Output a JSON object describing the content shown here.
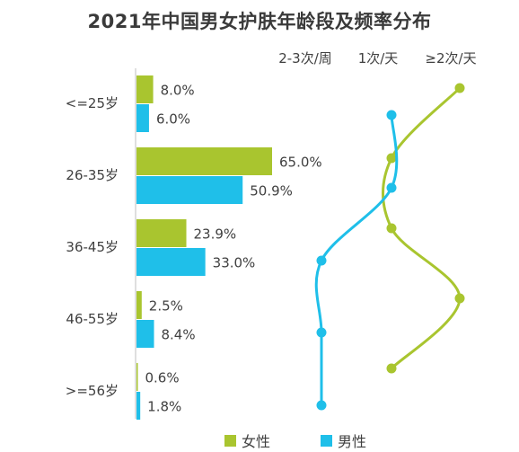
{
  "chart_data": [
    {
      "type": "bar",
      "orientation": "horizontal",
      "title": "2021年中国男女护肤年龄段及频率分布",
      "categories": [
        "<=25岁",
        "26-35岁",
        "36-45岁",
        "46-55岁",
        ">=56岁"
      ],
      "series": [
        {
          "name": "女性",
          "color": "#a9c52f",
          "values": [
            8.0,
            65.0,
            23.9,
            2.5,
            0.6
          ],
          "labels": [
            "8.0%",
            "65.0%",
            "23.9%",
            "2.5%",
            "0.6%"
          ]
        },
        {
          "name": "男性",
          "color": "#1fbfe9",
          "values": [
            6.0,
            50.9,
            33.0,
            8.4,
            1.8
          ],
          "labels": [
            "6.0%",
            "50.9%",
            "33.0%",
            "8.4%",
            "1.8%"
          ]
        }
      ]
    },
    {
      "type": "line",
      "x_categories": [
        "2-3次/周",
        "1次/天",
        "≥2次/天"
      ],
      "rows": [
        "<=25岁",
        "26-35岁",
        "36-45岁",
        "46-55岁",
        ">=56岁"
      ],
      "series": [
        {
          "name": "女性",
          "color": "#a9c52f",
          "values": [
            "≥2次/天",
            "1次/天",
            "1次/天",
            "≥2次/天",
            "1次/天"
          ]
        },
        {
          "name": "男性",
          "color": "#1fbfe9",
          "values": [
            "1次/天",
            "1次/天",
            "2-3次/周",
            "2-3次/周",
            "2-3次/周"
          ]
        }
      ]
    }
  ],
  "legend": [
    {
      "label": "女性",
      "color": "#a9c52f"
    },
    {
      "label": "男性",
      "color": "#1fbfe9"
    }
  ]
}
